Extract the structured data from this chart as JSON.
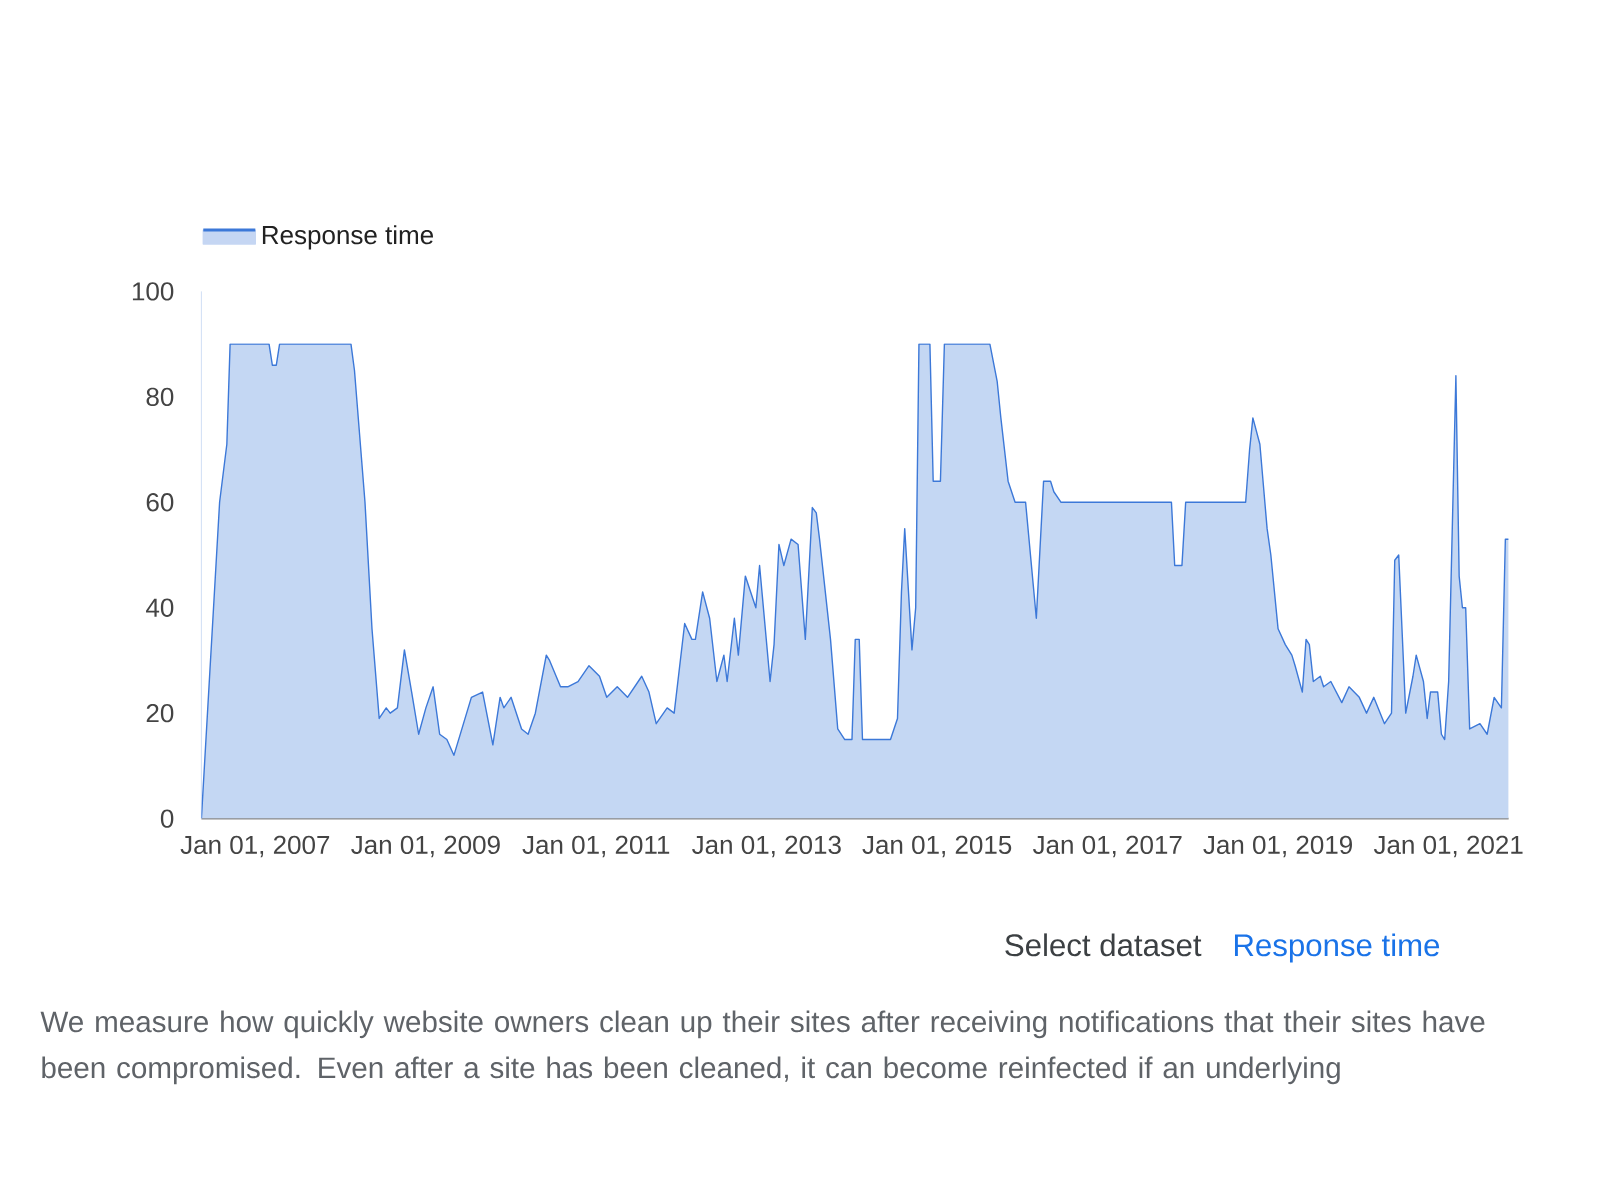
{
  "chart_data": {
    "type": "area",
    "x": [
      "2006-05-15",
      "2006-08-01",
      "2006-09-01",
      "2006-09-15",
      "2007-03-01",
      "2007-03-15",
      "2007-04-01",
      "2007-04-15",
      "2008-02-15",
      "2008-03-01",
      "2008-04-15",
      "2008-05-15",
      "2008-06-15",
      "2008-07-15",
      "2008-08-01",
      "2008-09-01",
      "2008-10-01",
      "2008-11-01",
      "2008-12-01",
      "2009-01-01",
      "2009-02-01",
      "2009-03-01",
      "2009-04-01",
      "2009-05-01",
      "2009-07-15",
      "2009-09-01",
      "2009-10-15",
      "2009-11-15",
      "2009-12-01",
      "2010-01-01",
      "2010-02-15",
      "2010-03-15",
      "2010-04-15",
      "2010-06-01",
      "2010-06-15",
      "2010-08-01",
      "2010-09-01",
      "2010-10-15",
      "2010-12-01",
      "2011-01-15",
      "2011-02-15",
      "2011-04-01",
      "2011-05-15",
      "2011-07-15",
      "2011-08-15",
      "2011-09-15",
      "2011-11-01",
      "2011-12-01",
      "2012-01-15",
      "2012-02-15",
      "2012-03-01",
      "2012-04-01",
      "2012-05-01",
      "2012-06-01",
      "2012-07-01",
      "2012-07-15",
      "2012-08-15",
      "2012-09-01",
      "2012-10-01",
      "2012-11-15",
      "2012-12-01",
      "2013-01-15",
      "2013-02-01",
      "2013-02-22",
      "2013-03-15",
      "2013-04-15",
      "2013-05-15",
      "2013-06-15",
      "2013-07-15",
      "2013-08-01",
      "2013-08-15",
      "2013-10-01",
      "2013-11-01",
      "2013-12-01",
      "2014-01-01",
      "2014-01-15",
      "2014-02-01",
      "2014-02-15",
      "2014-06-15",
      "2014-07-15",
      "2014-08-01",
      "2014-08-15",
      "2014-09-15",
      "2014-10-01",
      "2014-10-15",
      "2014-12-01",
      "2014-12-15",
      "2015-01-15",
      "2015-02-01",
      "2015-08-15",
      "2015-09-15",
      "2015-10-01",
      "2015-11-01",
      "2015-12-01",
      "2016-01-15",
      "2016-03-01",
      "2016-04-01",
      "2016-05-01",
      "2016-05-15",
      "2016-06-15",
      "2017-10-01",
      "2017-10-15",
      "2017-11-15",
      "2017-12-01",
      "2018-08-15",
      "2018-09-01",
      "2018-09-15",
      "2018-10-15",
      "2018-11-15",
      "2018-12-01",
      "2019-01-01",
      "2019-02-01",
      "2019-03-01",
      "2019-03-15",
      "2019-04-15",
      "2019-05-01",
      "2019-05-15",
      "2019-06-01",
      "2019-07-01",
      "2019-07-15",
      "2019-08-15",
      "2019-10-01",
      "2019-11-01",
      "2019-12-15",
      "2020-01-15",
      "2020-02-15",
      "2020-04-01",
      "2020-05-01",
      "2020-05-15",
      "2020-06-01",
      "2020-07-01",
      "2020-08-01",
      "2020-08-15",
      "2020-09-15",
      "2020-10-01",
      "2020-10-15",
      "2020-11-15",
      "2020-12-01",
      "2020-12-15",
      "2021-01-01",
      "2021-02-01",
      "2021-02-15",
      "2021-03-01",
      "2021-03-15",
      "2021-04-01",
      "2021-05-15",
      "2021-06-15",
      "2021-07-15",
      "2021-08-15",
      "2021-09-01",
      "2021-09-15"
    ],
    "series": [
      {
        "name": "Response time",
        "color": "#3c78d8",
        "values": [
          0,
          60,
          71,
          90,
          90,
          86,
          86,
          90,
          90,
          85,
          60,
          36,
          19,
          21,
          20,
          21,
          32,
          24,
          16,
          21,
          25,
          16,
          15,
          12,
          23,
          24,
          14,
          23,
          21,
          23,
          17,
          16,
          20,
          31,
          30,
          25,
          25,
          26,
          29,
          27,
          23,
          25,
          23,
          27,
          24,
          18,
          21,
          20,
          37,
          34,
          34,
          43,
          38,
          26,
          31,
          26,
          38,
          31,
          46,
          40,
          48,
          26,
          33,
          52,
          48,
          53,
          52,
          34,
          59,
          58,
          53,
          34,
          17,
          15,
          15,
          34,
          34,
          15,
          15,
          19,
          43,
          55,
          32,
          40,
          90,
          90,
          64,
          64,
          90,
          90,
          83,
          76,
          64,
          60,
          60,
          38,
          64,
          64,
          62,
          60,
          60,
          48,
          48,
          60,
          60,
          70,
          76,
          71,
          55,
          50,
          36,
          33,
          31,
          29,
          24,
          34,
          33,
          26,
          27,
          25,
          26,
          22,
          25,
          23,
          20,
          23,
          18,
          20,
          49,
          50,
          20,
          27,
          31,
          26,
          19,
          24,
          24,
          16,
          15,
          26,
          84,
          46,
          40,
          40,
          17,
          18,
          16,
          23,
          21,
          53,
          53
        ]
      }
    ],
    "xlim": [
      "2006-05-15",
      "2021-09-15"
    ],
    "xticks": [
      {
        "value": "2007-01-01",
        "label": "Jan 01, 2007"
      },
      {
        "value": "2009-01-01",
        "label": "Jan 01, 2009"
      },
      {
        "value": "2011-01-01",
        "label": "Jan 01, 2011"
      },
      {
        "value": "2013-01-01",
        "label": "Jan 01, 2013"
      },
      {
        "value": "2015-01-01",
        "label": "Jan 01, 2015"
      },
      {
        "value": "2017-01-01",
        "label": "Jan 01, 2017"
      },
      {
        "value": "2019-01-01",
        "label": "Jan 01, 2019"
      },
      {
        "value": "2021-01-01",
        "label": "Jan 01, 2021"
      }
    ],
    "ylim": [
      0,
      100
    ],
    "yticks": [
      0,
      20,
      40,
      60,
      80,
      100
    ],
    "legend": "top left",
    "annotations": [
      "Select dataset",
      "Response time",
      "We measure how quickly website owners clean up their sites after receiving notifications that their sites have been compromised. Even after a site has been cleaned, it can become reinfected if an underlying"
    ]
  }
}
